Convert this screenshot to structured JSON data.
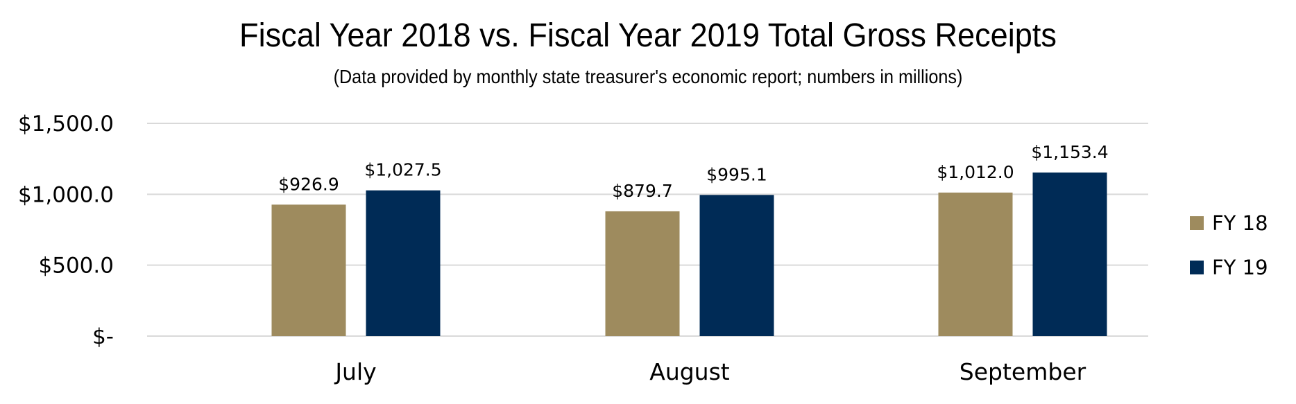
{
  "chart_data": {
    "type": "bar",
    "title": "Fiscal Year 2018 vs. Fiscal Year 2019 Total Gross Receipts",
    "subtitle": "(Data provided by monthly state treasurer's economic report; numbers in millions)",
    "categories": [
      "July",
      "August",
      "September"
    ],
    "series": [
      {
        "name": "FY 18",
        "values": [
          926.9,
          879.7,
          1012.0
        ],
        "labels": [
          "$926.9",
          "$879.7",
          "$1,012.0"
        ],
        "color": "#9e8b5e"
      },
      {
        "name": "FY 19",
        "values": [
          1027.5,
          995.1,
          1153.4
        ],
        "labels": [
          "$1,027.5",
          "$995.1",
          "$1,153.4"
        ],
        "color": "#002b56"
      }
    ],
    "y_ticks": [
      0,
      500,
      1000,
      1500
    ],
    "y_tick_labels": [
      "$-",
      "$500.0",
      "$1,000.0",
      "$1,500.0"
    ],
    "ylim": [
      0,
      1500
    ],
    "xlabel": "",
    "ylabel": "",
    "grid": true,
    "legend_position": "right",
    "colors": {
      "gridline": "#d9d9d9",
      "text": "#000000"
    }
  }
}
